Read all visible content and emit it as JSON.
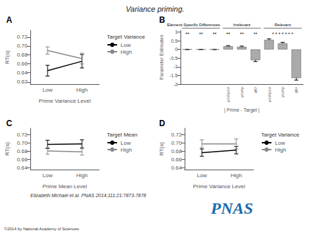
{
  "title": "Variance priming.",
  "annotations": [
    {
      "text": "Elizabeth Michael et al. PNAS 2014;111:21:7873-7878"
    },
    {
      "text": "©2014 by National Academy of Sciences"
    },
    {
      "text": "PNAS",
      "color": "#1a6bac"
    }
  ],
  "chart_data": [
    {
      "type": "line",
      "label": "A",
      "categories": [
        "Low",
        "High"
      ],
      "xlabel": "Prime Variance Level",
      "ylabel": "RT(s)",
      "ylim": [
        0.615,
        0.735
      ],
      "yticks": [
        0.62,
        0.64,
        0.66,
        0.68,
        {
          "value": 0.7,
          "label": "0.70"
        },
        0.72
      ],
      "grid": false,
      "legend": "upper right",
      "legend_title": "Target Variance",
      "series": [
        {
          "name": "Low",
          "color": "#000000",
          "values": [
            0.645,
            0.666
          ],
          "errors": [
            0.012,
            0.015
          ]
        },
        {
          "name": "High",
          "color": "#888888",
          "values": [
            0.69,
            0.672
          ],
          "errors": [
            0.008,
            0.012
          ]
        }
      ]
    },
    {
      "type": "bar",
      "label": "B",
      "categories": [
        null,
        null,
        null,
        "μ±σ/μ±σ",
        "μ±σ/μ",
        "dK²",
        "μ±σ/μ±σ",
        "μ±σ/μ",
        "dK²"
      ],
      "xlabel": "| Prime - Target |",
      "ylabel": "Parameter Estimates",
      "ylim": [
        -2.0,
        1.1
      ],
      "yticks": [
        -2,
        -1.5,
        -1,
        -0.5,
        0,
        0.5,
        1
      ],
      "grid": false,
      "color": "#aaaaaa",
      "values": [
        0.0,
        0.0,
        0.0,
        0.18,
        0.15,
        -0.62,
        0.55,
        0.35,
        -1.65
      ],
      "errors": [
        0.01,
        0.01,
        0.01,
        0.04,
        0.04,
        0.08,
        0.06,
        0.06,
        0.12
      ],
      "group_headers": [
        "Element-Specific Differences",
        "Irrelevant",
        "Relevant"
      ],
      "annotations": [
        "**",
        "**",
        "**",
        "**",
        "**",
        "**",
        null,
        "* * * * * * *",
        null
      ]
    },
    {
      "type": "line",
      "label": "C",
      "categories": [
        "Low",
        "High"
      ],
      "xlabel": "Prime Mean Level",
      "ylabel": "RT(s)",
      "ylim": [
        0.635,
        0.735
      ],
      "yticks": [
        0.64,
        0.66,
        0.68,
        {
          "value": 0.7,
          "label": "0.70"
        },
        0.72
      ],
      "grid": false,
      "legend": "upper right",
      "legend_title": "Target Mean",
      "series": [
        {
          "name": "Low",
          "color": "#000000",
          "values": [
            0.696,
            0.697
          ],
          "errors": [
            0.01,
            0.01
          ]
        },
        {
          "name": "High",
          "color": "#888888",
          "values": [
            0.68,
            0.678
          ],
          "errors": [
            0.008,
            0.008
          ]
        }
      ]
    },
    {
      "type": "line",
      "label": "D",
      "categories": [
        "Low",
        "High"
      ],
      "xlabel": "Prime Variance Level",
      "ylabel": "RT(s)",
      "ylim": [
        0.635,
        0.735
      ],
      "yticks": [
        0.64,
        0.66,
        0.68,
        {
          "value": 0.7,
          "label": "0.70"
        },
        0.72
      ],
      "grid": false,
      "legend": "upper right",
      "legend_title": "Target Variance",
      "series": [
        {
          "name": "Low",
          "color": "#000000",
          "values": [
            0.676,
            0.682
          ],
          "errors": [
            0.009,
            0.009
          ]
        },
        {
          "name": "High",
          "color": "#888888",
          "values": [
            0.697,
            0.697
          ],
          "errors": [
            0.01,
            0.012
          ]
        }
      ]
    }
  ]
}
